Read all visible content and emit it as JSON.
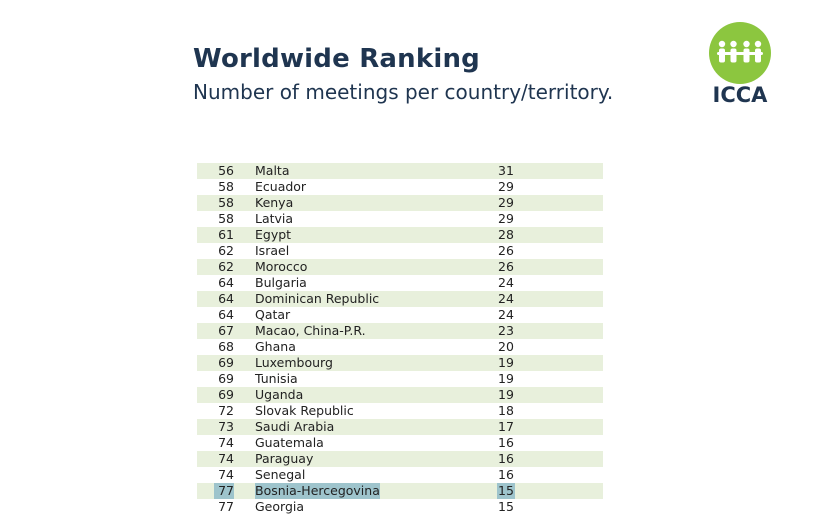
{
  "header": {
    "title": "Worldwide Ranking",
    "subtitle": "Number of meetings per country/territory."
  },
  "logo": {
    "text": "ICCA",
    "color": "#8cc63f",
    "icon": "people-group-icon"
  },
  "colors": {
    "row_shade": "#e8f0dc",
    "highlight": "#9ec4cc",
    "heading": "#1f3550"
  },
  "rows": [
    {
      "rank": "56",
      "country": "Malta",
      "value": "31"
    },
    {
      "rank": "58",
      "country": "Ecuador",
      "value": "29"
    },
    {
      "rank": "58",
      "country": "Kenya",
      "value": "29"
    },
    {
      "rank": "58",
      "country": "Latvia",
      "value": "29"
    },
    {
      "rank": "61",
      "country": "Egypt",
      "value": "28"
    },
    {
      "rank": "62",
      "country": "Israel",
      "value": "26"
    },
    {
      "rank": "62",
      "country": "Morocco",
      "value": "26"
    },
    {
      "rank": "64",
      "country": "Bulgaria",
      "value": "24"
    },
    {
      "rank": "64",
      "country": "Dominican Republic",
      "value": "24"
    },
    {
      "rank": "64",
      "country": "Qatar",
      "value": "24"
    },
    {
      "rank": "67",
      "country": "Macao, China-P.R.",
      "value": "23"
    },
    {
      "rank": "68",
      "country": "Ghana",
      "value": "20"
    },
    {
      "rank": "69",
      "country": "Luxembourg",
      "value": "19"
    },
    {
      "rank": "69",
      "country": "Tunisia",
      "value": "19"
    },
    {
      "rank": "69",
      "country": "Uganda",
      "value": "19"
    },
    {
      "rank": "72",
      "country": "Slovak Republic",
      "value": "18"
    },
    {
      "rank": "73",
      "country": "Saudi Arabia",
      "value": "17"
    },
    {
      "rank": "74",
      "country": "Guatemala",
      "value": "16"
    },
    {
      "rank": "74",
      "country": "Paraguay",
      "value": "16"
    },
    {
      "rank": "74",
      "country": "Senegal",
      "value": "16"
    },
    {
      "rank": "77",
      "country": "Bosnia-Hercegovina",
      "value": "15",
      "highlight": true
    },
    {
      "rank": "77",
      "country": "Georgia",
      "value": "15"
    }
  ]
}
